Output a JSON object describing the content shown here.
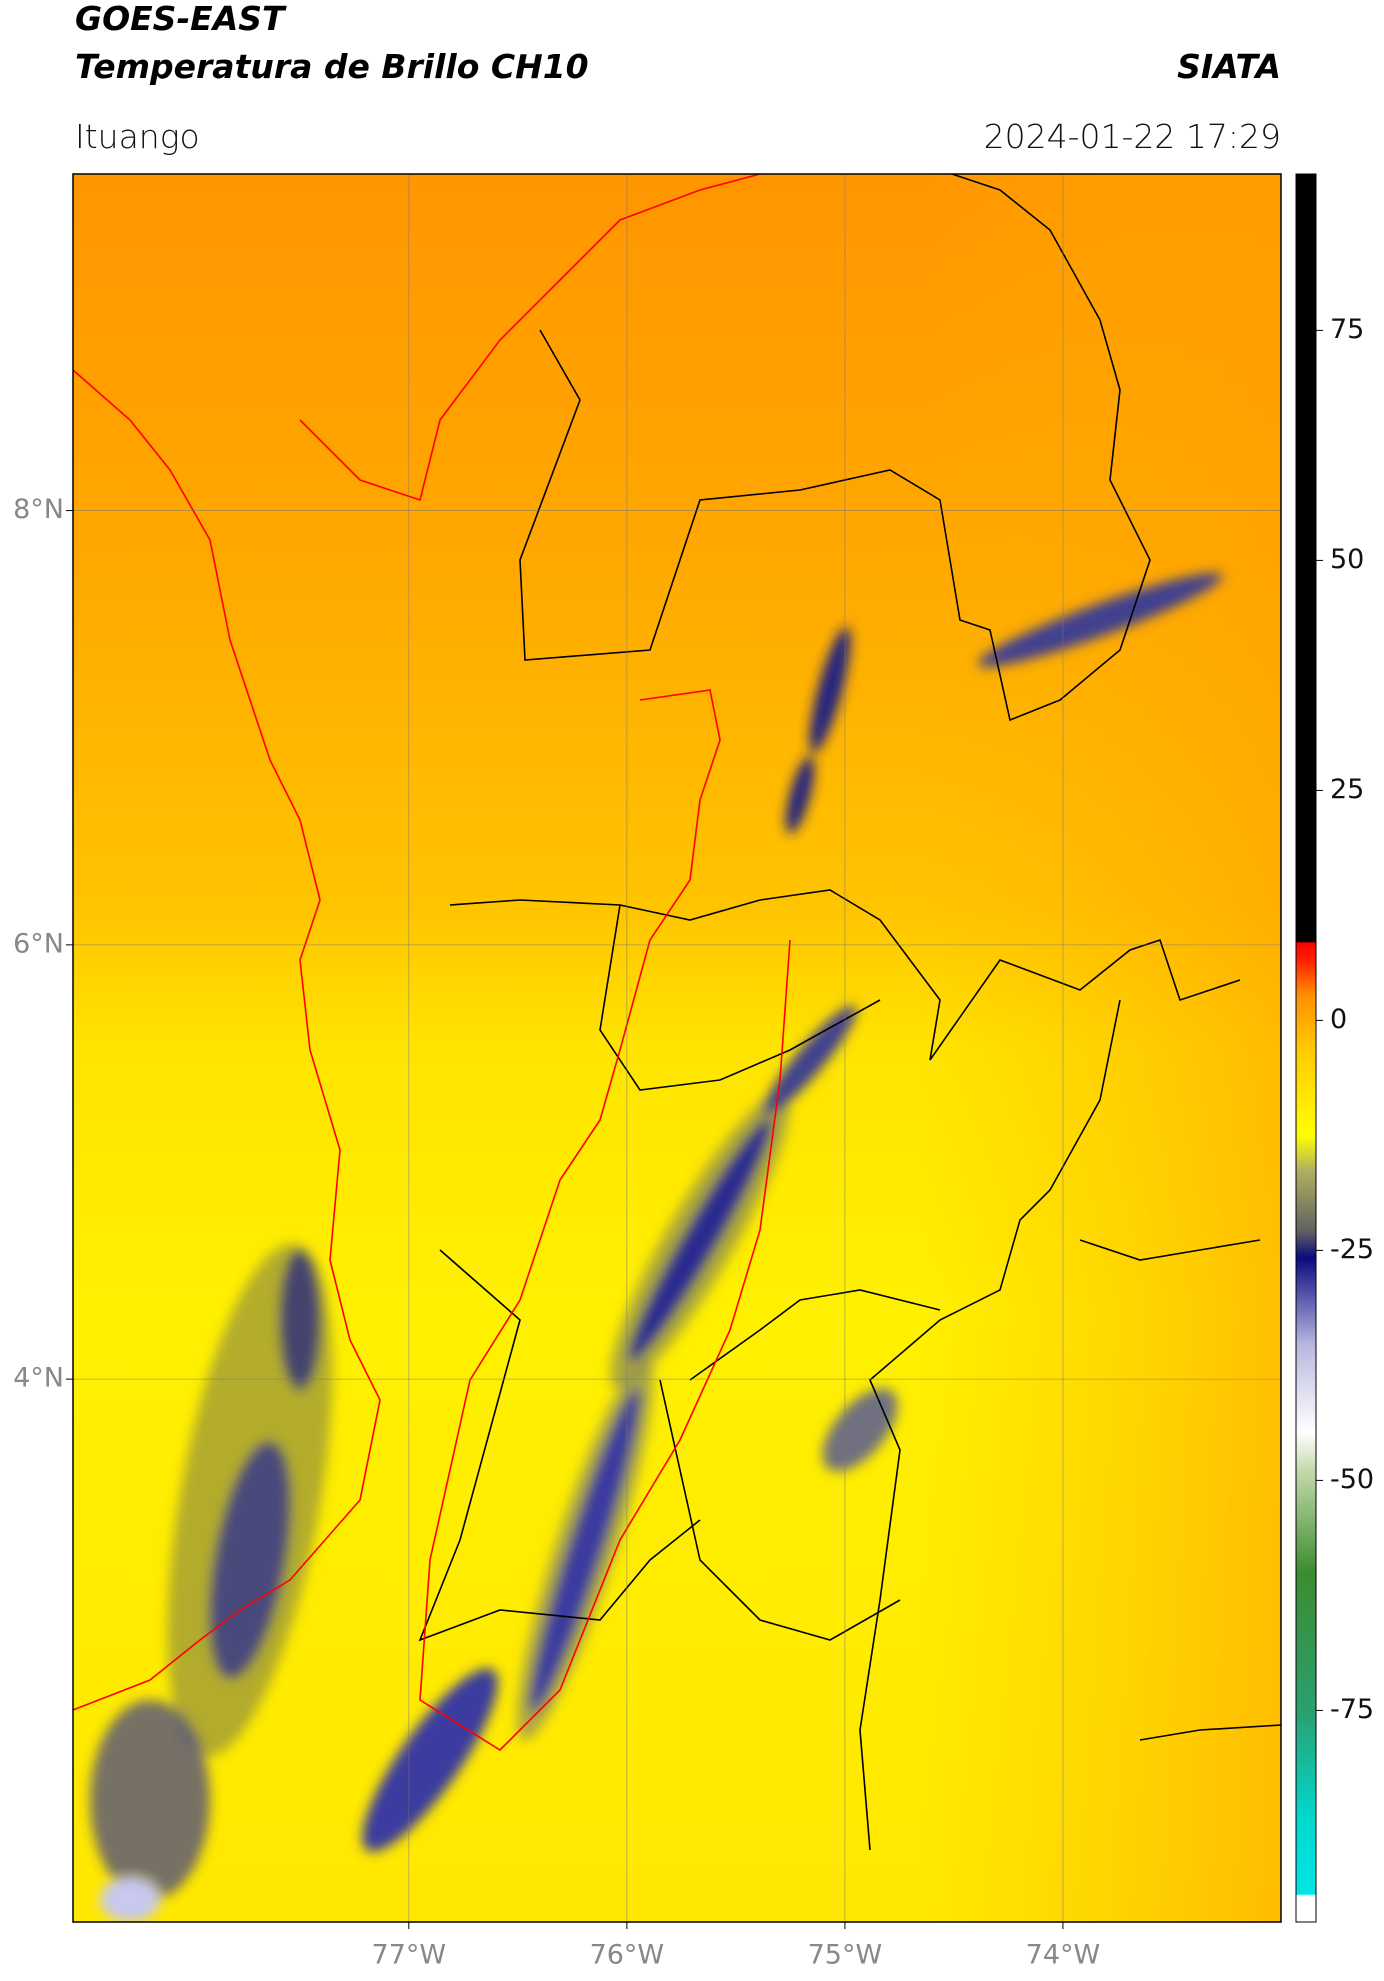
{
  "header": {
    "title": "GOES-EAST",
    "subtitle": "Temperatura de Brillo CH10",
    "agency": "SIATA",
    "location": "Ituango",
    "datetime": "2024-01-22 17:29"
  },
  "map": {
    "xlim": [
      -78.54,
      -73.0
    ],
    "ylim": [
      1.5,
      9.55
    ],
    "xticks": [
      {
        "value": -77,
        "label": "77°W"
      },
      {
        "value": -76,
        "label": "76°W"
      },
      {
        "value": -75,
        "label": "75°W"
      },
      {
        "value": -74,
        "label": "74°W"
      }
    ],
    "yticks": [
      {
        "value": 8,
        "label": "8°N"
      },
      {
        "value": 6,
        "label": "6°N"
      },
      {
        "value": 4,
        "label": "4°N"
      }
    ]
  },
  "colorbar": {
    "lim": [
      -98,
      92
    ],
    "ticks": [
      75,
      50,
      25,
      0,
      -25,
      -50,
      -75
    ]
  }
}
